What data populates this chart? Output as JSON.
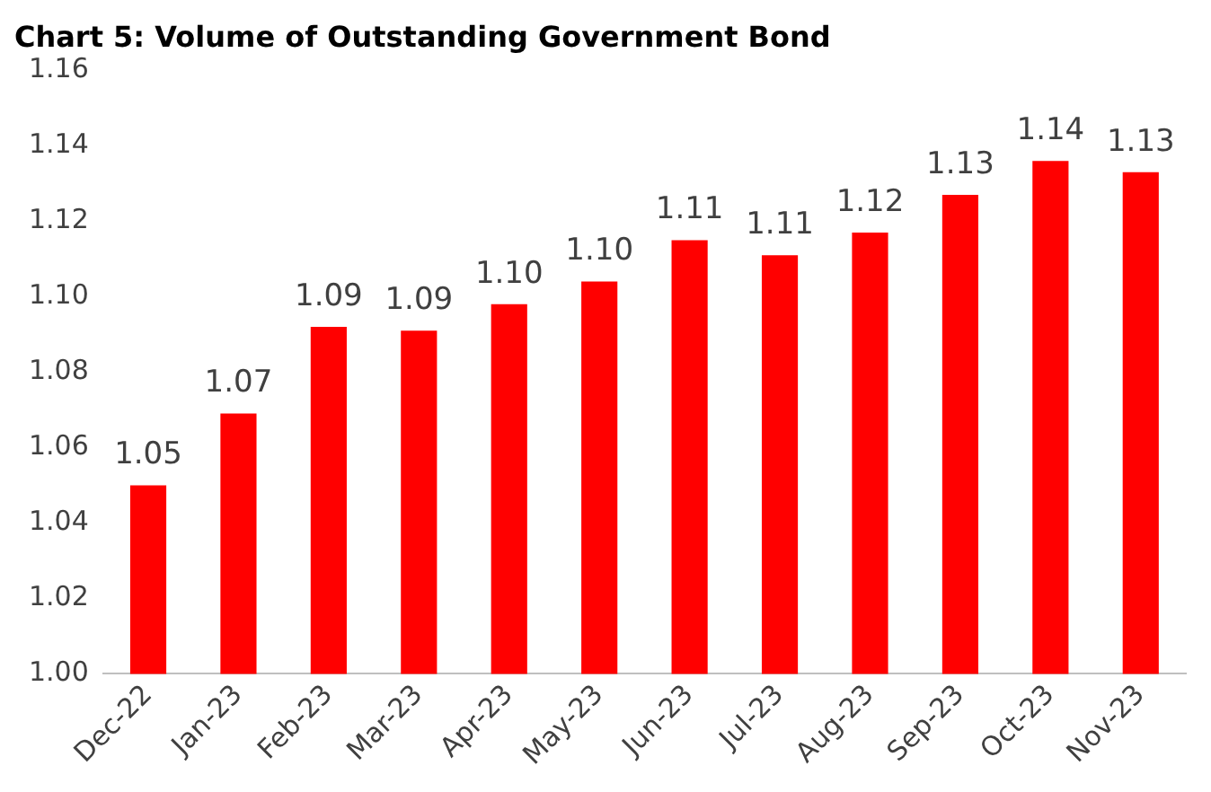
{
  "chart_data": {
    "type": "bar",
    "title": "Chart 5: Volume of Outstanding Government Bond",
    "categories": [
      "Dec-22",
      "Jan-23",
      "Feb-23",
      "Mar-23",
      "Apr-23",
      "May-23",
      "Jun-23",
      "Jul-23",
      "Aug-23",
      "Sep-23",
      "Oct-23",
      "Nov-23"
    ],
    "values": [
      1.05,
      1.069,
      1.092,
      1.091,
      1.098,
      1.104,
      1.115,
      1.111,
      1.117,
      1.127,
      1.136,
      1.133
    ],
    "value_labels": [
      "1.05",
      "1.07",
      "1.09",
      "1.09",
      "1.10",
      "1.10",
      "1.11",
      "1.11",
      "1.12",
      "1.13",
      "1.14",
      "1.13"
    ],
    "color": "#ff0000",
    "ylim": [
      1.0,
      1.16
    ],
    "yticks": [
      {
        "value": 1.0,
        "label": "1.00"
      },
      {
        "value": 1.02,
        "label": "1.02"
      },
      {
        "value": 1.04,
        "label": "1.04"
      },
      {
        "value": 1.06,
        "label": "1.06"
      },
      {
        "value": 1.08,
        "label": "1.08"
      },
      {
        "value": 1.1,
        "label": "1.10"
      },
      {
        "value": 1.12,
        "label": "1.12"
      },
      {
        "value": 1.14,
        "label": "1.14"
      },
      {
        "value": 1.16,
        "label": "1.16"
      }
    ],
    "grid": false,
    "legend": false
  }
}
